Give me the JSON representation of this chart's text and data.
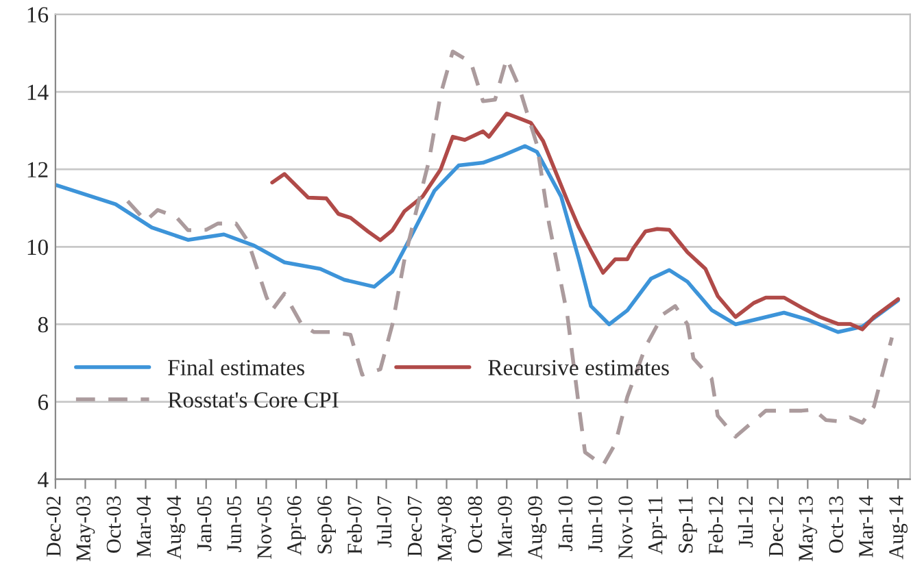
{
  "chart_data": {
    "type": "line",
    "series": [
      {
        "name": "Final estimates",
        "color": "#3d94d9",
        "line_style": "solid",
        "x": [
          "2002-12",
          "2003-10",
          "2004-04",
          "2004-10",
          "2005-04",
          "2005-09",
          "2006-02",
          "2006-08",
          "2006-12",
          "2007-05",
          "2007-08",
          "2007-11",
          "2008-03",
          "2008-07",
          "2008-11",
          "2009-02",
          "2009-06",
          "2009-08",
          "2009-12",
          "2010-03",
          "2010-05",
          "2010-08",
          "2010-11",
          "2011-03",
          "2011-06",
          "2011-09",
          "2012-01",
          "2012-05",
          "2012-09",
          "2013-01",
          "2013-05",
          "2013-10",
          "2014-02",
          "2014-08"
        ],
        "values": [
          11.6,
          11.1,
          10.5,
          10.18,
          10.32,
          10.03,
          9.6,
          9.43,
          9.15,
          8.97,
          9.36,
          10.25,
          11.45,
          12.1,
          12.17,
          12.34,
          12.6,
          12.45,
          11.3,
          9.68,
          8.47,
          8.0,
          8.36,
          9.18,
          9.4,
          9.1,
          8.37,
          8.0,
          8.15,
          8.3,
          8.12,
          7.8,
          7.94,
          8.62
        ]
      },
      {
        "name": "Recursive estimates",
        "color": "#b04a48",
        "line_style": "solid",
        "x": [
          "2005-12",
          "2006-02",
          "2006-06",
          "2006-09",
          "2006-11",
          "2007-01",
          "2007-04",
          "2007-06",
          "2007-08",
          "2007-10",
          "2008-01",
          "2008-04",
          "2008-06",
          "2008-08",
          "2008-11",
          "2008-12",
          "2009-03",
          "2009-07",
          "2009-09",
          "2010-01",
          "2010-03",
          "2010-05",
          "2010-07",
          "2010-09",
          "2010-11",
          "2010-12",
          "2011-02",
          "2011-04",
          "2011-06",
          "2011-09",
          "2011-12",
          "2012-02",
          "2012-05",
          "2012-08",
          "2012-10",
          "2013-01",
          "2013-04",
          "2013-07",
          "2013-10",
          "2013-12",
          "2014-02",
          "2014-04",
          "2014-08"
        ],
        "values": [
          11.66,
          11.88,
          11.27,
          11.25,
          10.85,
          10.75,
          10.39,
          10.17,
          10.43,
          10.92,
          11.3,
          12.0,
          12.84,
          12.76,
          12.98,
          12.84,
          13.44,
          13.2,
          12.73,
          11.2,
          10.5,
          9.9,
          9.33,
          9.68,
          9.68,
          9.96,
          10.4,
          10.46,
          10.44,
          9.86,
          9.43,
          8.73,
          8.19,
          8.55,
          8.69,
          8.69,
          8.43,
          8.19,
          8.01,
          8.01,
          7.87,
          8.19,
          8.65
        ]
      },
      {
        "name": "Rosstat's Core CPI",
        "color": "#ab9b9d",
        "line_style": "dashed",
        "x": [
          "2003-12",
          "2004-03",
          "2004-05",
          "2004-08",
          "2004-10",
          "2005-01",
          "2005-03",
          "2005-06",
          "2005-08",
          "2005-11",
          "2005-12",
          "2006-02",
          "2006-05",
          "2006-07",
          "2006-10",
          "2007-01",
          "2007-03",
          "2007-06",
          "2007-08",
          "2007-10",
          "2007-12",
          "2008-02",
          "2008-04",
          "2008-06",
          "2008-09",
          "2008-11",
          "2009-01",
          "2009-03",
          "2009-05",
          "2009-08",
          "2009-10",
          "2010-01",
          "2010-03",
          "2010-04",
          "2010-07",
          "2010-09",
          "2010-11",
          "2011-02",
          "2011-05",
          "2011-07",
          "2011-09",
          "2011-10",
          "2012-01",
          "2012-02",
          "2012-05",
          "2012-10",
          "2013-04",
          "2013-06",
          "2013-08",
          "2013-10",
          "2013-12",
          "2014-02",
          "2014-04",
          "2014-07"
        ],
        "values": [
          11.18,
          10.67,
          10.95,
          10.78,
          10.43,
          10.44,
          10.6,
          10.6,
          10.14,
          8.72,
          8.37,
          8.79,
          7.98,
          7.8,
          7.8,
          7.73,
          6.7,
          6.84,
          8.0,
          9.68,
          10.96,
          12.2,
          13.94,
          15.04,
          14.76,
          13.76,
          13.8,
          14.86,
          14.15,
          12.63,
          10.6,
          8.26,
          5.88,
          4.7,
          4.36,
          4.92,
          6.13,
          7.42,
          8.26,
          8.47,
          8.0,
          7.12,
          6.6,
          5.64,
          5.1,
          5.77,
          5.77,
          5.8,
          5.53,
          5.5,
          5.6,
          5.46,
          5.88,
          7.66
        ]
      }
    ],
    "xlim": [
      "2002-12",
      "2014-10"
    ],
    "xticks": [
      {
        "value": "2002-12",
        "label": "Dec-02"
      },
      {
        "value": "2003-05",
        "label": "May-03"
      },
      {
        "value": "2003-10",
        "label": "Oct-03"
      },
      {
        "value": "2004-03",
        "label": "Mar-04"
      },
      {
        "value": "2004-08",
        "label": "Aug-04"
      },
      {
        "value": "2005-01",
        "label": "Jan-05"
      },
      {
        "value": "2005-06",
        "label": "Jun-05"
      },
      {
        "value": "2005-11",
        "label": "Nov-05"
      },
      {
        "value": "2006-04",
        "label": "Apr-06"
      },
      {
        "value": "2006-09",
        "label": "Sep-06"
      },
      {
        "value": "2007-02",
        "label": "Feb-07"
      },
      {
        "value": "2007-07",
        "label": "Jul-07"
      },
      {
        "value": "2007-12",
        "label": "Dec-07"
      },
      {
        "value": "2008-05",
        "label": "May-08"
      },
      {
        "value": "2008-10",
        "label": "Oct-08"
      },
      {
        "value": "2009-03",
        "label": "Mar-09"
      },
      {
        "value": "2009-08",
        "label": "Aug-09"
      },
      {
        "value": "2010-01",
        "label": "Jan-10"
      },
      {
        "value": "2010-06",
        "label": "Jun-10"
      },
      {
        "value": "2010-11",
        "label": "Nov-10"
      },
      {
        "value": "2011-04",
        "label": "Apr-11"
      },
      {
        "value": "2011-09",
        "label": "Sep-11"
      },
      {
        "value": "2012-02",
        "label": "Feb-12"
      },
      {
        "value": "2012-07",
        "label": "Jul-12"
      },
      {
        "value": "2012-12",
        "label": "Dec-12"
      },
      {
        "value": "2013-05",
        "label": "May-13"
      },
      {
        "value": "2013-10",
        "label": "Oct-13"
      },
      {
        "value": "2014-03",
        "label": "Mar-14"
      },
      {
        "value": "2014-08",
        "label": "Aug-14"
      }
    ],
    "ylim": [
      4,
      16
    ],
    "yticks": [
      4,
      6,
      8,
      10,
      12,
      14,
      16
    ],
    "grid": "y",
    "legend": "bottom left",
    "marker": "none"
  }
}
